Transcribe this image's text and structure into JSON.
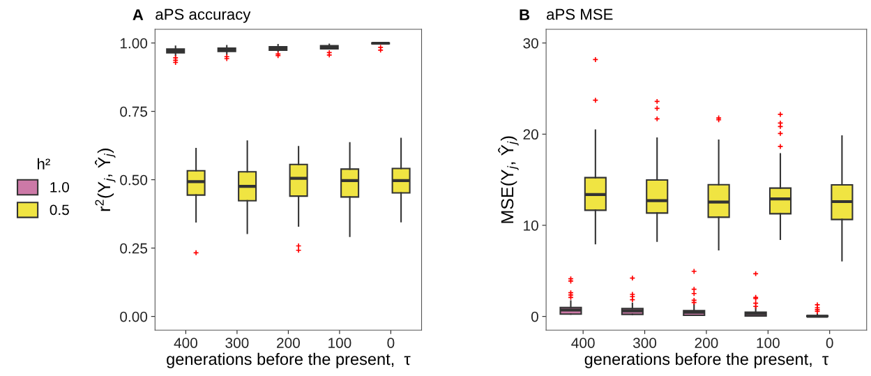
{
  "chart_data": [
    {
      "type": "box",
      "title": "aPS accuracy",
      "annotations": [
        "A"
      ],
      "xlabel": "generations before the present,  τ",
      "ylabel": "r$^{2}$(Y$_{j}$, Ŷ$_{j}$)",
      "legend_title": "h²",
      "legend": "left",
      "grid": false,
      "categories": [
        "400",
        "300",
        "200",
        "100",
        "0"
      ],
      "ylim": [
        -0.05,
        1.05
      ],
      "yticks": [
        {
          "value": 0,
          "label": "0.00"
        },
        {
          "value": 0.25,
          "label": "0.25"
        },
        {
          "value": 0.5,
          "label": "0.50"
        },
        {
          "value": 0.75,
          "label": "0.75"
        },
        {
          "value": 1,
          "label": "1.00"
        }
      ],
      "series": [
        {
          "name": "1.0",
          "color": "#cc79a7",
          "boxes": [
            {
              "low": 0.954,
              "q1": 0.964,
              "median": 0.971,
              "q3": 0.978,
              "high": 0.988,
              "outliers": [
                0.946,
                0.937,
                0.929
              ]
            },
            {
              "low": 0.959,
              "q1": 0.969,
              "median": 0.975,
              "q3": 0.981,
              "high": 0.99,
              "outliers": [
                0.95,
                0.943
              ]
            },
            {
              "low": 0.97,
              "q1": 0.974,
              "median": 0.98,
              "q3": 0.986,
              "high": 0.994,
              "outliers": [
                0.96,
                0.954
              ]
            },
            {
              "low": 0.979,
              "q1": 0.979,
              "median": 0.984,
              "q3": 0.99,
              "high": 0.995,
              "outliers": [
                0.965,
                0.956
              ]
            },
            {
              "low": 0.997,
              "q1": 0.997,
              "median": 0.999,
              "q3": 1.0,
              "high": 1.0,
              "outliers": [
                0.984,
                0.974
              ]
            }
          ]
        },
        {
          "name": "0.5",
          "color": "#f0e442",
          "boxes": [
            {
              "low": 0.346,
              "q1": 0.444,
              "median": 0.493,
              "q3": 0.533,
              "high": 0.614,
              "outliers": [
                0.233
              ]
            },
            {
              "low": 0.304,
              "q1": 0.423,
              "median": 0.476,
              "q3": 0.529,
              "high": 0.641
            },
            {
              "low": 0.331,
              "q1": 0.44,
              "median": 0.505,
              "q3": 0.556,
              "high": 0.621,
              "outliers": [
                0.258,
                0.242
              ]
            },
            {
              "low": 0.293,
              "q1": 0.437,
              "median": 0.497,
              "q3": 0.539,
              "high": 0.635
            },
            {
              "low": 0.347,
              "q1": 0.452,
              "median": 0.497,
              "q3": 0.541,
              "high": 0.651
            }
          ]
        }
      ]
    },
    {
      "type": "box",
      "title": "aPS MSE",
      "annotations": [
        "B"
      ],
      "xlabel": "generations before the present,  τ",
      "ylabel": "MSE(Y$_{j}$, Ŷ$_{j}$)",
      "grid": false,
      "categories": [
        "400",
        "300",
        "200",
        "100",
        "0"
      ],
      "ylim": [
        -1.5,
        31.5
      ],
      "yticks": [
        0,
        10,
        20,
        30
      ],
      "series": [
        {
          "name": "1.0",
          "color": "#cc79a7",
          "boxes": [
            {
              "low": 0.26,
              "q1": 0.26,
              "median": 0.71,
              "q3": 0.99,
              "high": 1.7,
              "outliers": [
                4.13,
                3.88,
                2.6,
                2.35,
                2.09
              ]
            },
            {
              "low": 0.23,
              "q1": 0.23,
              "median": 0.61,
              "q3": 0.86,
              "high": 1.45,
              "outliers": [
                4.21,
                2.42,
                2.17,
                1.84
              ]
            },
            {
              "low": 0.13,
              "q1": 0.13,
              "median": 0.46,
              "q3": 0.64,
              "high": 1.33,
              "outliers": [
                4.95,
                2.98,
                2.52,
                1.78,
                1.53
              ]
            },
            {
              "low": 0.05,
              "q1": 0.05,
              "median": 0.3,
              "q3": 0.46,
              "high": 0.94,
              "outliers": [
                4.69,
                2.09,
                1.96,
                1.45,
                1.1
              ]
            },
            {
              "low": 0,
              "q1": 0,
              "median": 0.02,
              "q3": 0.08,
              "high": 0.3,
              "outliers": [
                1.28,
                0.95,
                0.75,
                0.55
              ]
            }
          ]
        },
        {
          "name": "0.5",
          "color": "#f0e442",
          "boxes": [
            {
              "low": 8.0,
              "q1": 11.65,
              "median": 13.37,
              "q3": 15.23,
              "high": 20.45,
              "outliers": [
                28.18,
                23.72
              ]
            },
            {
              "low": 8.26,
              "q1": 11.35,
              "median": 12.7,
              "q3": 14.97,
              "high": 19.56,
              "outliers": [
                23.59,
                22.83,
                21.68
              ]
            },
            {
              "low": 7.32,
              "q1": 10.89,
              "median": 12.55,
              "q3": 14.46,
              "high": 19.33,
              "outliers": [
                21.78,
                21.58
              ]
            },
            {
              "low": 8.47,
              "q1": 11.27,
              "median": 12.9,
              "q3": 14.08,
              "high": 17.83,
              "outliers": [
                22.17,
                21.22,
                20.84,
                20.07,
                18.65
              ]
            },
            {
              "low": 6.12,
              "q1": 10.64,
              "median": 12.6,
              "q3": 14.44,
              "high": 19.79
            }
          ]
        }
      ]
    }
  ]
}
